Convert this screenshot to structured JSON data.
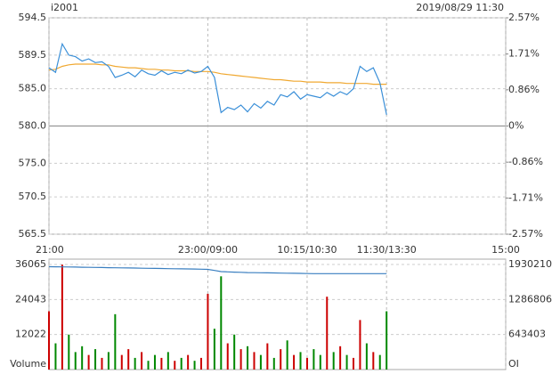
{
  "header": {
    "symbol": "i2001",
    "datetime": "2019/08/29 11:30"
  },
  "chart_data": [
    {
      "type": "line",
      "xlim": [
        0,
        345
      ],
      "xticks": [
        {
          "value": 0,
          "label": "21:00"
        },
        {
          "value": 120,
          "label": "23:00/09:00"
        },
        {
          "value": 195,
          "label": "10:15/10:30"
        },
        {
          "value": 255,
          "label": "11:30/13:30"
        },
        {
          "value": 345,
          "label": "15:00"
        }
      ],
      "ylim": [
        565.5,
        594.5
      ],
      "yticks": [
        594.5,
        589.5,
        {
          "value": 585,
          "label": "585.0"
        },
        {
          "value": 580,
          "label": "580.0"
        },
        {
          "value": 575,
          "label": "575.0"
        },
        570.5,
        565.5
      ],
      "y2lim": [
        -2.57,
        2.57
      ],
      "y2ticks": [
        {
          "value": 2.57,
          "label": "2.57%"
        },
        {
          "value": 1.71,
          "label": "1.71%"
        },
        {
          "value": 0.86,
          "label": "0.86%"
        },
        {
          "value": 0,
          "label": "0%"
        },
        {
          "value": -0.86,
          "label": "-0.86%"
        },
        {
          "value": -1.71,
          "label": "-1.71%"
        },
        {
          "value": -2.57,
          "label": "-2.57%"
        }
      ],
      "up_color": "#cc0000",
      "down_color": "#008800",
      "flat_color": "#000000",
      "grid": true,
      "x": [
        0,
        5,
        10,
        15,
        20,
        25,
        30,
        35,
        40,
        45,
        50,
        55,
        60,
        65,
        70,
        75,
        80,
        85,
        90,
        95,
        100,
        105,
        110,
        115,
        120,
        125,
        130,
        135,
        140,
        145,
        150,
        155,
        160,
        165,
        170,
        175,
        180,
        185,
        190,
        195,
        200,
        205,
        210,
        215,
        220,
        225,
        230,
        235,
        240,
        245,
        250,
        255
      ],
      "series": [
        {
          "color": "#3a8fd8",
          "values": [
            587.8,
            587.2,
            591.0,
            589.5,
            589.3,
            588.7,
            589.0,
            588.5,
            588.6,
            588.0,
            586.5,
            586.8,
            587.2,
            586.6,
            587.5,
            587.0,
            586.8,
            587.4,
            586.9,
            587.2,
            587.0,
            587.5,
            587.1,
            587.3,
            588.0,
            586.5,
            581.8,
            582.5,
            582.2,
            582.8,
            581.9,
            583.0,
            582.4,
            583.3,
            582.8,
            584.2,
            583.9,
            584.6,
            583.6,
            584.2,
            584.0,
            583.8,
            584.5,
            584.0,
            584.6,
            584.2,
            585.0,
            588.0,
            587.3,
            587.8,
            585.8,
            581.5
          ]
        },
        {
          "color": "#f0a830",
          "values": [
            587.5,
            587.6,
            588.0,
            588.2,
            588.3,
            588.3,
            588.3,
            588.3,
            588.2,
            588.2,
            588.0,
            587.9,
            587.8,
            587.8,
            587.7,
            587.6,
            587.6,
            587.5,
            587.5,
            587.4,
            587.4,
            587.4,
            587.3,
            587.3,
            587.3,
            587.2,
            587.0,
            586.9,
            586.8,
            586.7,
            586.6,
            586.5,
            586.4,
            586.3,
            586.2,
            586.2,
            586.1,
            586.0,
            586.0,
            585.9,
            585.9,
            585.9,
            585.8,
            585.8,
            585.8,
            585.7,
            585.7,
            585.7,
            585.7,
            585.6,
            585.6,
            585.6
          ]
        }
      ]
    },
    {
      "type": "bar",
      "xlim": [
        0,
        345
      ],
      "ylim": [
        0,
        36065
      ],
      "yticks": [
        12022,
        24043,
        36065
      ],
      "ylabel": "Volume",
      "y2lim": [
        0,
        1930210
      ],
      "y2ticks": [
        643403,
        1286806,
        1930210
      ],
      "y2label": "OI",
      "x": [
        0,
        5,
        10,
        15,
        20,
        25,
        30,
        35,
        40,
        45,
        50,
        55,
        60,
        65,
        70,
        75,
        80,
        85,
        90,
        95,
        100,
        105,
        110,
        115,
        120,
        125,
        130,
        135,
        140,
        145,
        150,
        155,
        160,
        165,
        170,
        175,
        180,
        185,
        190,
        195,
        200,
        205,
        210,
        215,
        220,
        225,
        230,
        235,
        240,
        245,
        250,
        255
      ],
      "series": [
        {
          "values": [
            20000,
            9000,
            36000,
            12000,
            6000,
            8000,
            5000,
            7000,
            4000,
            6000,
            19000,
            5000,
            7000,
            4000,
            6000,
            3000,
            5000,
            4000,
            6000,
            3000,
            4000,
            5000,
            3000,
            4000,
            26000,
            14000,
            32000,
            9000,
            12000,
            7000,
            8000,
            6000,
            5000,
            9000,
            4000,
            7000,
            10000,
            5000,
            6000,
            4000,
            7000,
            5000,
            25000,
            6000,
            8000,
            5000,
            4000,
            17000,
            9000,
            6000,
            5000,
            20000
          ]
        },
        {
          "axis": "y2",
          "color": "#3a7fc0",
          "values": [
            1890000,
            1888000,
            1886000,
            1884000,
            1882000,
            1880000,
            1878000,
            1876000,
            1874000,
            1872000,
            1870000,
            1868000,
            1866000,
            1864000,
            1862000,
            1860000,
            1858000,
            1856000,
            1854000,
            1852000,
            1850000,
            1848000,
            1846000,
            1844000,
            1840000,
            1820000,
            1800000,
            1795000,
            1790000,
            1786000,
            1782000,
            1780000,
            1778000,
            1776000,
            1774000,
            1772000,
            1770000,
            1768000,
            1766000,
            1764000,
            1762000,
            1762000,
            1762000,
            1762000,
            1762000,
            1762000,
            1762000,
            1762000,
            1762000,
            1762000,
            1762000,
            1762000
          ]
        }
      ]
    }
  ]
}
